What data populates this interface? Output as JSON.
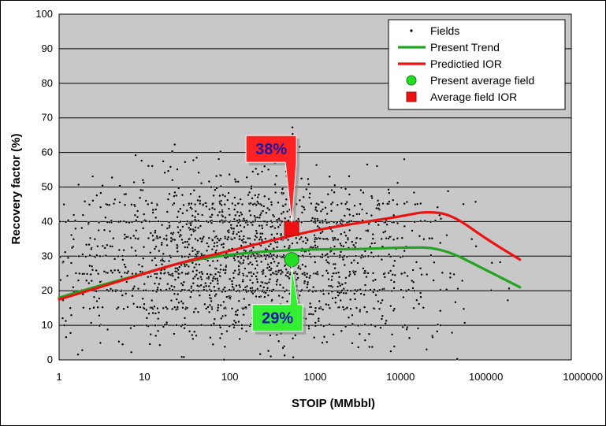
{
  "chart_data": {
    "type": "scatter",
    "xlabel": "STOIP (MMbbl)",
    "ylabel": "Recovery factor (%)",
    "xscale": "log",
    "xlim": [
      1,
      1000000
    ],
    "ylim": [
      0,
      100
    ],
    "grid": "horizontal",
    "legend_position": "top-right",
    "x_tick_labels": [
      "1",
      "10",
      "100",
      "1000",
      "10000",
      "100000",
      "1000000"
    ],
    "y_tick_labels": [
      "0",
      "10",
      "20",
      "30",
      "40",
      "50",
      "60",
      "70",
      "80",
      "90",
      "100"
    ],
    "legend": [
      {
        "label": "Fields",
        "marker": "dot",
        "color": "#000000"
      },
      {
        "label": "Present Trend",
        "marker": "line",
        "color": "#22a322"
      },
      {
        "label": "Predictied IOR",
        "marker": "line",
        "color": "#ee1111"
      },
      {
        "label": "Present average field",
        "marker": "circle",
        "color": "#22dd22"
      },
      {
        "label": "Average field IOR",
        "marker": "square",
        "color": "#ee1111"
      }
    ],
    "series": [
      {
        "name": "Present Trend",
        "color": "#22a322",
        "points": [
          [
            1,
            18
          ],
          [
            3,
            21.5
          ],
          [
            10,
            25
          ],
          [
            30,
            28.5
          ],
          [
            100,
            30.5
          ],
          [
            300,
            31.5
          ],
          [
            1000,
            32
          ],
          [
            3000,
            32
          ],
          [
            10000,
            32.5
          ],
          [
            30000,
            32.5
          ],
          [
            100000,
            26
          ],
          [
            250000,
            21
          ]
        ]
      },
      {
        "name": "Predictied IOR",
        "color": "#ee1111",
        "points": [
          [
            1,
            17.5
          ],
          [
            3,
            21
          ],
          [
            10,
            25
          ],
          [
            30,
            28.5
          ],
          [
            100,
            31.5
          ],
          [
            300,
            34.5
          ],
          [
            1000,
            37.5
          ],
          [
            3000,
            39.5
          ],
          [
            10000,
            41.5
          ],
          [
            20000,
            43
          ],
          [
            40000,
            42
          ],
          [
            100000,
            35
          ],
          [
            250000,
            29
          ]
        ]
      },
      {
        "name": "Present average field",
        "color": "#22dd22",
        "marker": "circle",
        "points": [
          [
            530,
            29
          ]
        ]
      },
      {
        "name": "Average field IOR",
        "color": "#ee1111",
        "marker": "square",
        "points": [
          [
            530,
            38
          ]
        ]
      }
    ],
    "annotations": [
      {
        "text": "38%",
        "x": 530,
        "y": 38,
        "fill": "#ff2222",
        "text_color": "#1a1aa8",
        "placement": "above"
      },
      {
        "text": "29%",
        "x": 530,
        "y": 29,
        "fill": "#33ee33",
        "text_color": "#1a1aa8",
        "placement": "below"
      }
    ],
    "fields_scatter_count": 2200
  }
}
